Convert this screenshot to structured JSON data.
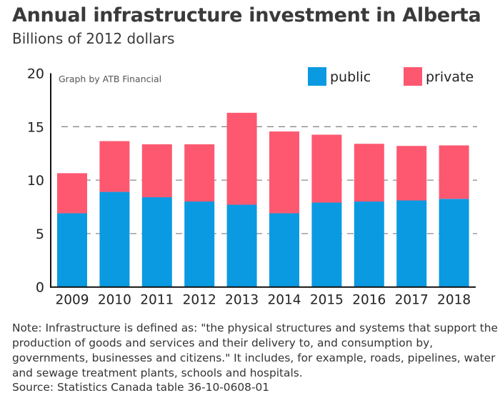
{
  "title": "Annual infrastructure investment in Alberta",
  "subtitle": "Billions of 2012 dollars",
  "note": "Note: Infrastructure is defined as: \"the physical structures and systems that support the production of goods and services and their delivery to, and consumption by, governments, businesses and citizens.\" It includes, for example, roads, pipelines, water and sewage treatment plants, schools and hospitals.",
  "source": "Source: Statistics Canada table 36-10-0608-01",
  "chart_data": {
    "type": "bar",
    "stacked": true,
    "title": "Annual infrastructure investment in Alberta",
    "subtitle": "Billions of 2012 dollars",
    "annotation": "Graph by ATB Financial",
    "xlabel": "",
    "ylabel": "Billions of 2012 dollars",
    "ylim": [
      0,
      20
    ],
    "yticks": [
      0,
      5,
      10,
      15,
      20
    ],
    "grid": "dashed horizontal",
    "legend_position": "top-right",
    "categories": [
      "2009",
      "2010",
      "2011",
      "2012",
      "2013",
      "2014",
      "2015",
      "2016",
      "2017",
      "2018"
    ],
    "series": [
      {
        "name": "public",
        "color": "#0a9ae2",
        "values": [
          6.9,
          8.9,
          8.4,
          8.0,
          7.7,
          6.9,
          7.9,
          8.0,
          8.1,
          8.25
        ]
      },
      {
        "name": "private",
        "color": "#fd5870",
        "values": [
          3.75,
          4.75,
          4.95,
          5.35,
          8.6,
          7.65,
          6.35,
          5.4,
          5.1,
          5.0
        ]
      }
    ]
  }
}
